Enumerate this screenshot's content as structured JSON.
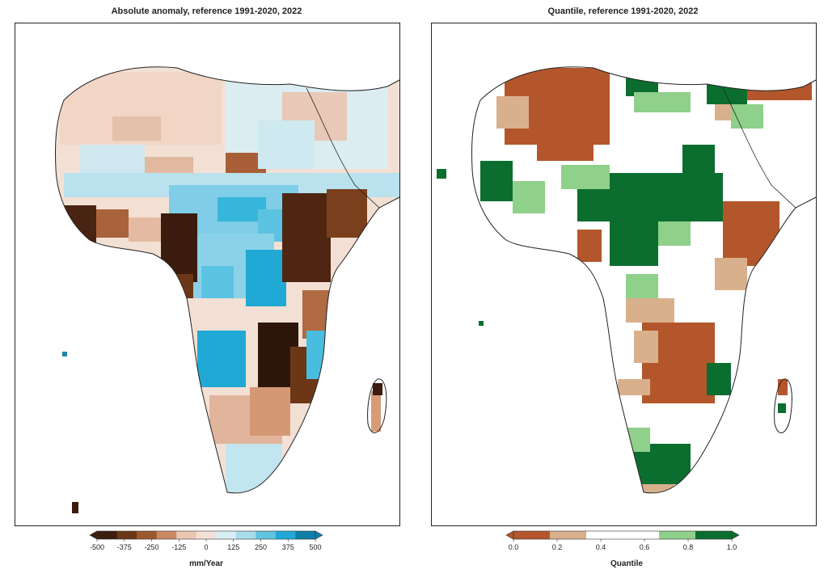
{
  "panels": {
    "left": {
      "title": "Absolute anomaly, reference 1991-2020, 2022",
      "colorbar": {
        "unit": "mm/Year",
        "ticks": [
          "-500",
          "-375",
          "-250",
          "-125",
          "0",
          "125",
          "250",
          "375",
          "500"
        ],
        "colors": [
          "#3b1c0e",
          "#6b3716",
          "#9b5a2e",
          "#c98a63",
          "#e9c6b2",
          "#f3e0d4",
          "#d7eef4",
          "#a9dcea",
          "#62c3e0",
          "#1fa9d4",
          "#0f7fa8"
        ]
      }
    },
    "right": {
      "title": "Quantile, reference 1991-2020, 2022",
      "colorbar": {
        "unit": "Quantile",
        "ticks": [
          "0.0",
          "0.2",
          "0.4",
          "0.6",
          "0.8",
          "1.0"
        ],
        "colors": [
          "#b4562b",
          "#d9b08c",
          "#ffffff",
          "#ffffff",
          "#8fd08a",
          "#0b6e2f"
        ]
      }
    }
  }
}
